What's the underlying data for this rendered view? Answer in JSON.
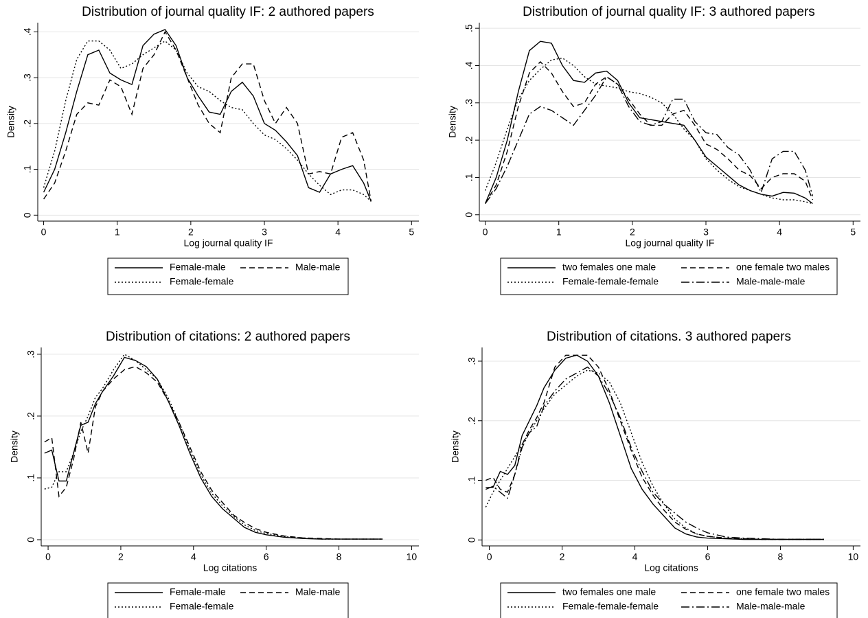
{
  "chart_data": [
    {
      "type": "line",
      "title": "Distribution of journal quality IF: 2 authored papers",
      "x_label": "Log journal quality IF",
      "y_label": "Density",
      "grid": true,
      "xlim": [
        -0.08,
        5.1
      ],
      "ylim": [
        -0.013,
        0.42
      ],
      "xticks": [
        0,
        1,
        2,
        3,
        4,
        5
      ],
      "yticks": [
        0,
        {
          "value": 0.1,
          "label": ".1"
        },
        {
          "value": 0.2,
          "label": ".2"
        },
        {
          "value": 0.3,
          "label": ".3"
        },
        {
          "value": 0.4,
          "label": ".4"
        }
      ],
      "x": [
        0,
        0.15,
        0.3,
        0.45,
        0.6,
        0.75,
        0.9,
        1.05,
        1.2,
        1.35,
        1.5,
        1.65,
        1.8,
        1.95,
        2.1,
        2.25,
        2.4,
        2.55,
        2.7,
        2.85,
        3.0,
        3.15,
        3.3,
        3.45,
        3.6,
        3.75,
        3.9,
        4.05,
        4.2,
        4.35,
        4.45
      ],
      "series": [
        {
          "name": "Female-male",
          "color": "#000000",
          "line_style": "solid",
          "values": [
            0.05,
            0.1,
            0.18,
            0.27,
            0.35,
            0.36,
            0.31,
            0.295,
            0.285,
            0.37,
            0.395,
            0.405,
            0.37,
            0.3,
            0.26,
            0.225,
            0.22,
            0.27,
            0.29,
            0.26,
            0.2,
            0.185,
            0.16,
            0.13,
            0.06,
            0.05,
            0.09,
            0.1,
            0.108,
            0.07,
            0.03
          ]
        },
        {
          "name": "Male-male",
          "color": "#000000",
          "line_style": "dashed",
          "values": [
            0.035,
            0.07,
            0.14,
            0.22,
            0.245,
            0.24,
            0.295,
            0.28,
            0.22,
            0.32,
            0.35,
            0.4,
            0.36,
            0.3,
            0.24,
            0.2,
            0.18,
            0.3,
            0.33,
            0.33,
            0.25,
            0.2,
            0.235,
            0.2,
            0.09,
            0.095,
            0.09,
            0.17,
            0.18,
            0.12,
            0.03
          ]
        },
        {
          "name": "Female-female",
          "color": "#000000",
          "line_style": "dotted",
          "values": [
            0.06,
            0.14,
            0.25,
            0.34,
            0.38,
            0.38,
            0.36,
            0.32,
            0.33,
            0.35,
            0.365,
            0.38,
            0.36,
            0.31,
            0.28,
            0.27,
            0.25,
            0.235,
            0.23,
            0.2,
            0.175,
            0.165,
            0.145,
            0.12,
            0.09,
            0.065,
            0.045,
            0.055,
            0.055,
            0.045,
            0.03
          ]
        }
      ]
    },
    {
      "type": "line",
      "title": "Distribution of journal quality IF: 3 authored papers",
      "x_label": "Log journal quality IF",
      "y_label": "Density",
      "grid": true,
      "xlim": [
        -0.08,
        5.1
      ],
      "ylim": [
        -0.017,
        0.515
      ],
      "xticks": [
        0,
        1,
        2,
        3,
        4,
        5
      ],
      "yticks": [
        0,
        {
          "value": 0.1,
          "label": ".1"
        },
        {
          "value": 0.2,
          "label": ".2"
        },
        {
          "value": 0.3,
          "label": ".3"
        },
        {
          "value": 0.4,
          "label": ".4"
        },
        {
          "value": 0.5,
          "label": ".5"
        }
      ],
      "x": [
        0,
        0.15,
        0.3,
        0.45,
        0.6,
        0.75,
        0.9,
        1.05,
        1.2,
        1.35,
        1.5,
        1.65,
        1.8,
        1.95,
        2.1,
        2.25,
        2.4,
        2.55,
        2.7,
        2.85,
        3.0,
        3.15,
        3.3,
        3.45,
        3.6,
        3.75,
        3.9,
        4.05,
        4.2,
        4.35,
        4.45
      ],
      "series": [
        {
          "name": "two females one male",
          "color": "#000000",
          "line_style": "solid",
          "values": [
            0.03,
            0.1,
            0.2,
            0.33,
            0.44,
            0.465,
            0.46,
            0.4,
            0.36,
            0.355,
            0.38,
            0.385,
            0.36,
            0.3,
            0.26,
            0.255,
            0.25,
            0.245,
            0.24,
            0.2,
            0.155,
            0.13,
            0.105,
            0.08,
            0.065,
            0.055,
            0.05,
            0.06,
            0.058,
            0.045,
            0.03
          ]
        },
        {
          "name": "one female two males",
          "color": "#000000",
          "line_style": "dashed",
          "values": [
            0.03,
            0.08,
            0.17,
            0.29,
            0.38,
            0.41,
            0.38,
            0.33,
            0.29,
            0.3,
            0.35,
            0.37,
            0.35,
            0.31,
            0.27,
            0.24,
            0.24,
            0.27,
            0.28,
            0.24,
            0.19,
            0.175,
            0.15,
            0.12,
            0.105,
            0.07,
            0.1,
            0.11,
            0.11,
            0.09,
            0.04
          ]
        },
        {
          "name": "Female-female-female",
          "color": "#000000",
          "line_style": "dotted",
          "values": [
            0.065,
            0.14,
            0.23,
            0.31,
            0.36,
            0.39,
            0.415,
            0.42,
            0.4,
            0.37,
            0.35,
            0.345,
            0.34,
            0.33,
            0.325,
            0.315,
            0.3,
            0.27,
            0.23,
            0.2,
            0.15,
            0.12,
            0.095,
            0.075,
            0.065,
            0.055,
            0.045,
            0.04,
            0.04,
            0.035,
            0.03
          ]
        },
        {
          "name": "Male-male-male",
          "color": "#000000",
          "line_style": "dashdot",
          "values": [
            0.03,
            0.07,
            0.13,
            0.2,
            0.27,
            0.29,
            0.28,
            0.26,
            0.24,
            0.28,
            0.32,
            0.37,
            0.35,
            0.29,
            0.25,
            0.24,
            0.25,
            0.31,
            0.31,
            0.25,
            0.22,
            0.215,
            0.18,
            0.16,
            0.12,
            0.06,
            0.15,
            0.17,
            0.17,
            0.12,
            0.05
          ]
        }
      ]
    },
    {
      "type": "line",
      "title": "Distribution of citations: 2 authored papers",
      "x_label": "Log citations",
      "y_label": "Density",
      "grid": true,
      "xlim": [
        -0.19,
        10.2
      ],
      "ylim": [
        -0.01,
        0.311
      ],
      "xticks": [
        0,
        2,
        4,
        6,
        8,
        10
      ],
      "yticks": [
        0,
        {
          "value": 0.1,
          "label": ".1"
        },
        {
          "value": 0.2,
          "label": ".2"
        },
        {
          "value": 0.3,
          "label": ".3"
        }
      ],
      "x": [
        -0.1,
        0.1,
        0.3,
        0.5,
        0.7,
        0.9,
        1.1,
        1.3,
        1.5,
        1.8,
        2.1,
        2.4,
        2.7,
        3.0,
        3.3,
        3.6,
        3.9,
        4.2,
        4.5,
        4.8,
        5.1,
        5.4,
        5.7,
        6.0,
        6.5,
        7.0,
        7.5,
        8.0,
        8.5,
        9.2
      ],
      "series": [
        {
          "name": "Female-male",
          "color": "#000000",
          "line_style": "solid",
          "values": [
            0.14,
            0.145,
            0.095,
            0.095,
            0.14,
            0.185,
            0.19,
            0.22,
            0.24,
            0.265,
            0.295,
            0.29,
            0.28,
            0.26,
            0.225,
            0.185,
            0.14,
            0.1,
            0.07,
            0.05,
            0.035,
            0.02,
            0.012,
            0.008,
            0.004,
            0.002,
            0.001,
            0.001,
            0.001,
            0.001
          ]
        },
        {
          "name": "Male-male",
          "color": "#000000",
          "line_style": "dashed",
          "values": [
            0.158,
            0.165,
            0.07,
            0.085,
            0.13,
            0.19,
            0.14,
            0.215,
            0.24,
            0.26,
            0.275,
            0.28,
            0.27,
            0.255,
            0.225,
            0.19,
            0.15,
            0.11,
            0.08,
            0.06,
            0.04,
            0.028,
            0.018,
            0.012,
            0.006,
            0.003,
            0.002,
            0.001,
            0.001,
            0.001
          ]
        },
        {
          "name": "Female-female",
          "color": "#000000",
          "line_style": "dotted",
          "values": [
            0.082,
            0.085,
            0.11,
            0.11,
            0.14,
            0.175,
            0.2,
            0.23,
            0.245,
            0.275,
            0.3,
            0.29,
            0.275,
            0.26,
            0.23,
            0.19,
            0.145,
            0.105,
            0.075,
            0.055,
            0.038,
            0.024,
            0.015,
            0.01,
            0.005,
            0.003,
            0.001,
            0.001,
            0.001,
            0.001
          ]
        }
      ]
    },
    {
      "type": "line",
      "title": "Distribution of citations. 3 authored papers",
      "x_label": "Log citations",
      "y_label": "Density",
      "grid": true,
      "xlim": [
        -0.2,
        10.2
      ],
      "ylim": [
        -0.01,
        0.323
      ],
      "xticks": [
        0,
        2,
        4,
        6,
        8,
        10
      ],
      "yticks": [
        0,
        {
          "value": 0.1,
          "label": ".1"
        },
        {
          "value": 0.2,
          "label": ".2"
        },
        {
          "value": 0.3,
          "label": ".3"
        }
      ],
      "x": [
        -0.1,
        0.1,
        0.3,
        0.5,
        0.7,
        0.9,
        1.1,
        1.3,
        1.5,
        1.8,
        2.1,
        2.4,
        2.7,
        3.0,
        3.3,
        3.6,
        3.9,
        4.2,
        4.5,
        4.8,
        5.1,
        5.4,
        5.7,
        6.0,
        6.5,
        7.0,
        7.5,
        8.0,
        8.5,
        9.2
      ],
      "series": [
        {
          "name": "two females one male",
          "color": "#000000",
          "line_style": "solid",
          "values": [
            0.088,
            0.088,
            0.115,
            0.11,
            0.125,
            0.175,
            0.2,
            0.225,
            0.255,
            0.285,
            0.305,
            0.31,
            0.3,
            0.275,
            0.23,
            0.175,
            0.12,
            0.085,
            0.06,
            0.04,
            0.02,
            0.01,
            0.005,
            0.003,
            0.002,
            0.001,
            0.001,
            0.001,
            0.001,
            0.001
          ]
        },
        {
          "name": "one female two males",
          "color": "#000000",
          "line_style": "dashed",
          "values": [
            0.1,
            0.105,
            0.085,
            0.08,
            0.11,
            0.16,
            0.185,
            0.205,
            0.23,
            0.29,
            0.31,
            0.31,
            0.31,
            0.29,
            0.25,
            0.2,
            0.15,
            0.105,
            0.075,
            0.05,
            0.03,
            0.018,
            0.01,
            0.006,
            0.003,
            0.002,
            0.001,
            0.001,
            0.001,
            0.001
          ]
        },
        {
          "name": "Female-female-female",
          "color": "#000000",
          "line_style": "dotted",
          "values": [
            0.055,
            0.08,
            0.1,
            0.12,
            0.14,
            0.16,
            0.18,
            0.2,
            0.22,
            0.245,
            0.26,
            0.275,
            0.285,
            0.28,
            0.265,
            0.23,
            0.18,
            0.13,
            0.09,
            0.06,
            0.035,
            0.02,
            0.01,
            0.006,
            0.003,
            0.002,
            0.001,
            0.001,
            0.001,
            0.001
          ]
        },
        {
          "name": "Male-male-male",
          "color": "#000000",
          "line_style": "dashdot",
          "values": [
            0.085,
            0.09,
            0.08,
            0.07,
            0.11,
            0.155,
            0.18,
            0.19,
            0.225,
            0.25,
            0.27,
            0.28,
            0.29,
            0.275,
            0.245,
            0.205,
            0.155,
            0.115,
            0.08,
            0.06,
            0.045,
            0.03,
            0.02,
            0.012,
            0.005,
            0.003,
            0.002,
            0.001,
            0.001,
            0.001
          ]
        }
      ]
    }
  ]
}
